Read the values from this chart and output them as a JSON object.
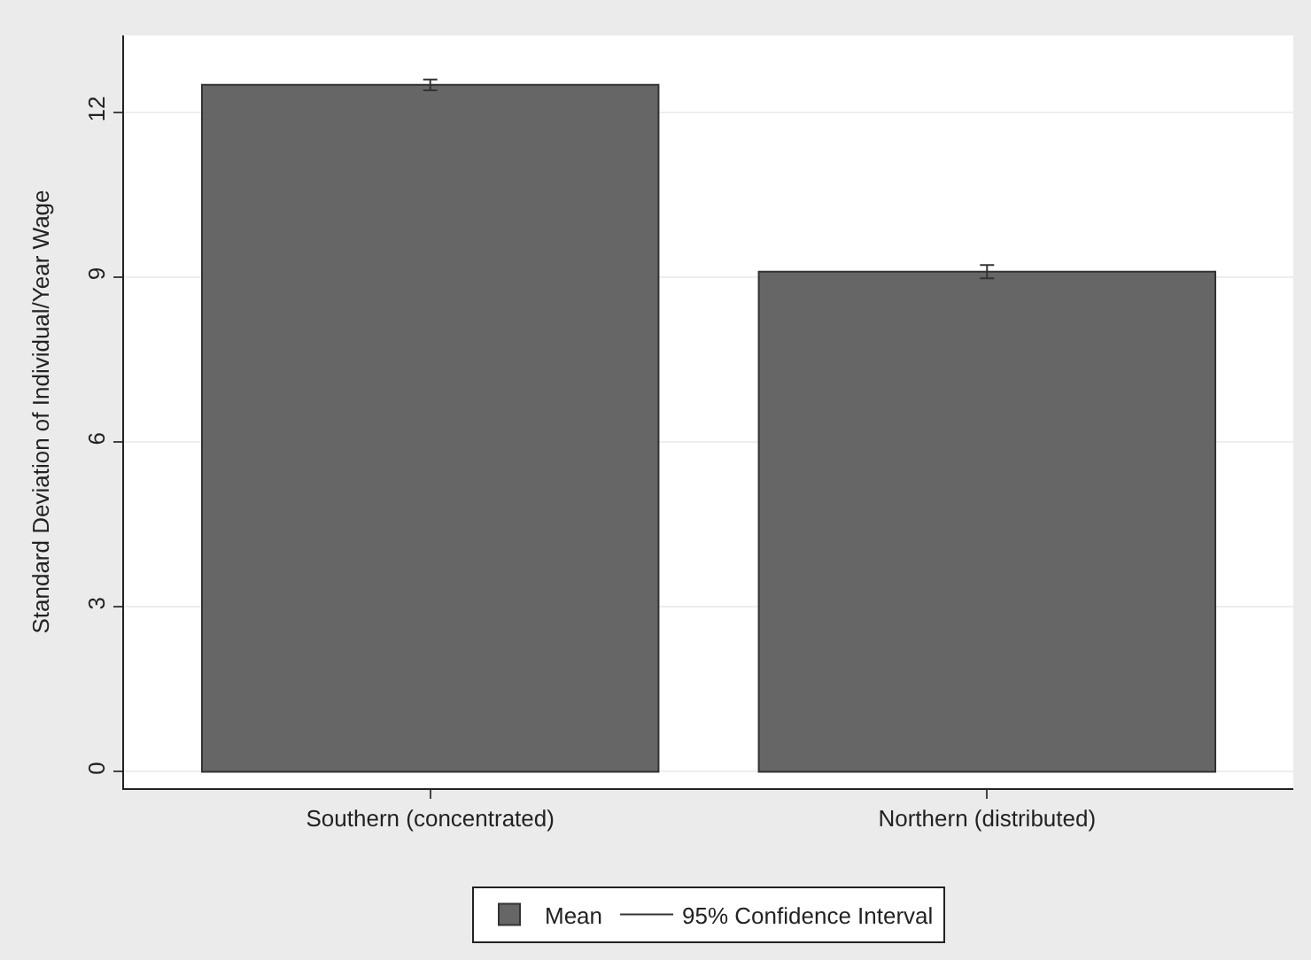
{
  "chart_data": {
    "type": "bar",
    "ylabel": "Standard Deviation of Individual/Year Wage",
    "categories": [
      "Southern (concentrated)",
      "Northern (distributed)"
    ],
    "series": [
      {
        "name": "Mean",
        "color": "#666666",
        "values": [
          12.5,
          9.1
        ]
      },
      {
        "name": "95% Confidence Interval",
        "type": "scatter",
        "color": "#333333",
        "values": [
          12.5,
          9.1
        ],
        "errors": [
          0.1,
          0.12
        ]
      }
    ],
    "ylim": [
      -0.3,
      13.4
    ],
    "yticks": [
      0,
      3,
      6,
      9,
      12
    ],
    "grid": "y",
    "legend": "bottom"
  }
}
